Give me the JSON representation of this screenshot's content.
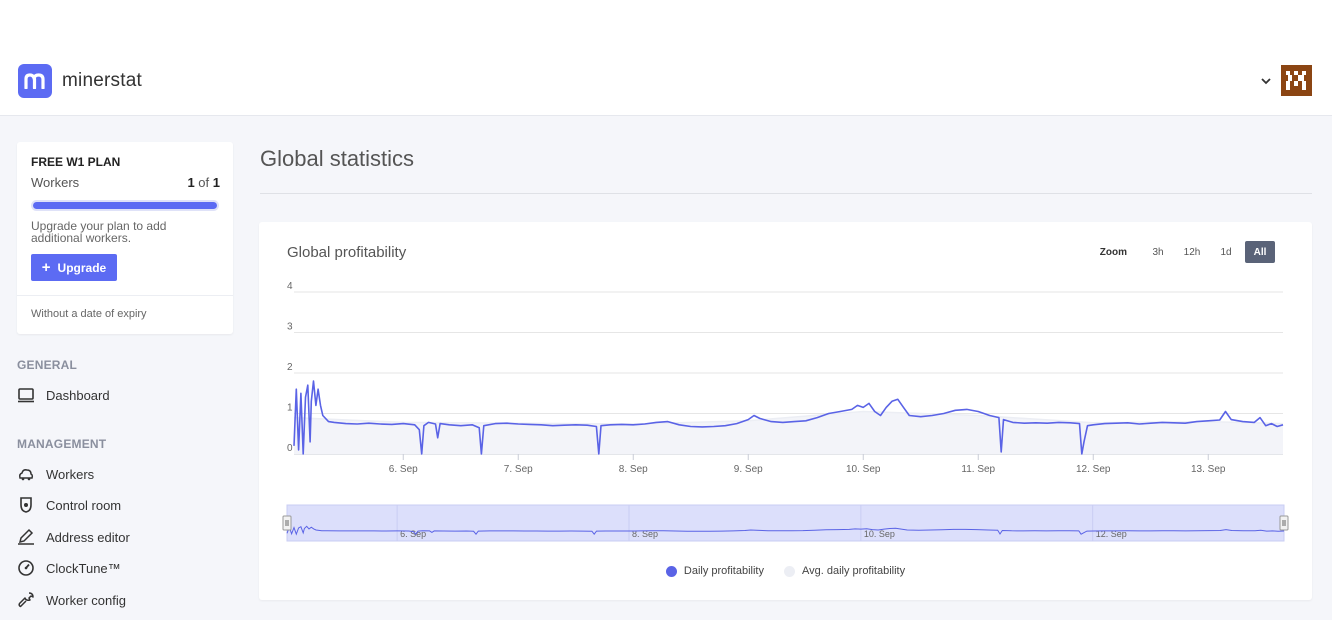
{
  "app": {
    "name": "minerstat",
    "logo_letter": "m"
  },
  "plan": {
    "title": "FREE W1 PLAN",
    "workers_label": "Workers",
    "workers_used": "1",
    "workers_of": "of",
    "workers_total": "1",
    "progress_fraction": 1.0,
    "upgrade_text": "Upgrade your plan to add additional workers.",
    "upgrade_button": "Upgrade",
    "expiry_text": "Without a date of expiry"
  },
  "nav": {
    "general_heading": "GENERAL",
    "dashboard": "Dashboard",
    "management_heading": "MANAGEMENT",
    "workers": "Workers",
    "control_room": "Control room",
    "address_editor": "Address editor",
    "clocktune": "ClockTune™",
    "worker_config": "Worker config"
  },
  "page": {
    "title": "Global statistics"
  },
  "chart_card": {
    "title": "Global profitability",
    "zoom_label": "Zoom",
    "zoom_options": [
      "3h",
      "12h",
      "1d",
      "All"
    ],
    "zoom_selected": "All"
  },
  "colors": {
    "accent": "#5c6bf3",
    "series": "#5a63e6",
    "navigator_fill": "#dcdffb",
    "active_zoom": "#5a6378"
  },
  "chart_data": {
    "type": "line",
    "title": "",
    "xlabel": "",
    "ylabel": "",
    "ylim": [
      0,
      4
    ],
    "y_ticks": [
      "0",
      "1",
      "2",
      "3",
      "4"
    ],
    "x_range": [
      5.05,
      13.65
    ],
    "x_ticks": [
      {
        "value": 6,
        "label": "6. Sep"
      },
      {
        "value": 7,
        "label": "7. Sep"
      },
      {
        "value": 8,
        "label": "8. Sep"
      },
      {
        "value": 9,
        "label": "9. Sep"
      },
      {
        "value": 10,
        "label": "10. Sep"
      },
      {
        "value": 11,
        "label": "11. Sep"
      },
      {
        "value": 12,
        "label": "12. Sep"
      },
      {
        "value": 13,
        "label": "13. Sep"
      }
    ],
    "navigator_ticks": [
      {
        "value": 6,
        "label": "6. Sep"
      },
      {
        "value": 8,
        "label": "8. Sep"
      },
      {
        "value": 10,
        "label": "10. Sep"
      },
      {
        "value": 12,
        "label": "12. Sep"
      }
    ],
    "legend_position": "bottom",
    "grid": true,
    "series": [
      {
        "name": "Daily profitability",
        "color": "#5a63e6",
        "points": [
          [
            5.05,
            0.2
          ],
          [
            5.07,
            1.6
          ],
          [
            5.09,
            0.1
          ],
          [
            5.11,
            1.5
          ],
          [
            5.13,
            0.0
          ],
          [
            5.15,
            1.4
          ],
          [
            5.17,
            1.7
          ],
          [
            5.19,
            0.3
          ],
          [
            5.2,
            1.3
          ],
          [
            5.22,
            1.8
          ],
          [
            5.24,
            1.2
          ],
          [
            5.26,
            1.6
          ],
          [
            5.28,
            1.2
          ],
          [
            5.3,
            0.95
          ],
          [
            5.35,
            0.8
          ],
          [
            5.4,
            0.78
          ],
          [
            5.5,
            0.75
          ],
          [
            5.6,
            0.74
          ],
          [
            5.7,
            0.76
          ],
          [
            5.8,
            0.74
          ],
          [
            5.9,
            0.73
          ],
          [
            6.0,
            0.75
          ],
          [
            6.1,
            0.72
          ],
          [
            6.14,
            0.6
          ],
          [
            6.16,
            0.0
          ],
          [
            6.18,
            0.7
          ],
          [
            6.22,
            0.78
          ],
          [
            6.28,
            0.74
          ],
          [
            6.3,
            0.4
          ],
          [
            6.32,
            0.75
          ],
          [
            6.4,
            0.72
          ],
          [
            6.5,
            0.7
          ],
          [
            6.6,
            0.72
          ],
          [
            6.66,
            0.65
          ],
          [
            6.68,
            0.0
          ],
          [
            6.7,
            0.7
          ],
          [
            6.8,
            0.75
          ],
          [
            6.9,
            0.76
          ],
          [
            7.0,
            0.74
          ],
          [
            7.1,
            0.73
          ],
          [
            7.2,
            0.72
          ],
          [
            7.3,
            0.7
          ],
          [
            7.4,
            0.71
          ],
          [
            7.5,
            0.72
          ],
          [
            7.6,
            0.71
          ],
          [
            7.68,
            0.68
          ],
          [
            7.7,
            0.0
          ],
          [
            7.72,
            0.7
          ],
          [
            7.8,
            0.72
          ],
          [
            7.9,
            0.73
          ],
          [
            8.0,
            0.72
          ],
          [
            8.1,
            0.74
          ],
          [
            8.2,
            0.78
          ],
          [
            8.3,
            0.8
          ],
          [
            8.4,
            0.72
          ],
          [
            8.5,
            0.68
          ],
          [
            8.6,
            0.67
          ],
          [
            8.7,
            0.68
          ],
          [
            8.8,
            0.7
          ],
          [
            8.9,
            0.75
          ],
          [
            9.0,
            0.85
          ],
          [
            9.05,
            0.95
          ],
          [
            9.1,
            0.88
          ],
          [
            9.2,
            0.8
          ],
          [
            9.3,
            0.78
          ],
          [
            9.4,
            0.8
          ],
          [
            9.5,
            0.82
          ],
          [
            9.6,
            0.9
          ],
          [
            9.7,
            1.0
          ],
          [
            9.8,
            1.05
          ],
          [
            9.9,
            1.1
          ],
          [
            9.95,
            1.2
          ],
          [
            10.0,
            1.15
          ],
          [
            10.05,
            1.25
          ],
          [
            10.1,
            1.05
          ],
          [
            10.15,
            0.95
          ],
          [
            10.2,
            1.15
          ],
          [
            10.25,
            1.3
          ],
          [
            10.3,
            1.35
          ],
          [
            10.35,
            1.15
          ],
          [
            10.4,
            0.95
          ],
          [
            10.5,
            0.92
          ],
          [
            10.6,
            0.95
          ],
          [
            10.7,
            1.0
          ],
          [
            10.8,
            1.08
          ],
          [
            10.9,
            1.1
          ],
          [
            11.0,
            1.05
          ],
          [
            11.1,
            0.95
          ],
          [
            11.18,
            0.9
          ],
          [
            11.2,
            0.05
          ],
          [
            11.22,
            0.85
          ],
          [
            11.3,
            0.78
          ],
          [
            11.4,
            0.76
          ],
          [
            11.5,
            0.77
          ],
          [
            11.6,
            0.76
          ],
          [
            11.7,
            0.78
          ],
          [
            11.8,
            0.77
          ],
          [
            11.88,
            0.75
          ],
          [
            11.9,
            0.0
          ],
          [
            11.92,
            0.3
          ],
          [
            11.95,
            0.7
          ],
          [
            12.0,
            0.72
          ],
          [
            12.1,
            0.75
          ],
          [
            12.2,
            0.76
          ],
          [
            12.3,
            0.77
          ],
          [
            12.4,
            0.74
          ],
          [
            12.5,
            0.76
          ],
          [
            12.6,
            0.78
          ],
          [
            12.7,
            0.77
          ],
          [
            12.8,
            0.76
          ],
          [
            12.9,
            0.8
          ],
          [
            13.0,
            0.82
          ],
          [
            13.1,
            0.84
          ],
          [
            13.15,
            1.05
          ],
          [
            13.2,
            0.85
          ],
          [
            13.3,
            0.8
          ],
          [
            13.4,
            0.78
          ],
          [
            13.45,
            0.9
          ],
          [
            13.5,
            0.7
          ],
          [
            13.55,
            0.75
          ],
          [
            13.6,
            0.68
          ],
          [
            13.65,
            0.72
          ]
        ]
      },
      {
        "name": "Avg. daily profitability",
        "color": "#eceef4",
        "points": [
          [
            5.05,
            0.9
          ],
          [
            6.0,
            0.78
          ],
          [
            7.0,
            0.76
          ],
          [
            8.0,
            0.74
          ],
          [
            9.0,
            0.82
          ],
          [
            10.0,
            1.05
          ],
          [
            11.0,
            0.95
          ],
          [
            12.0,
            0.77
          ],
          [
            13.0,
            0.8
          ],
          [
            13.65,
            0.75
          ]
        ]
      }
    ]
  }
}
